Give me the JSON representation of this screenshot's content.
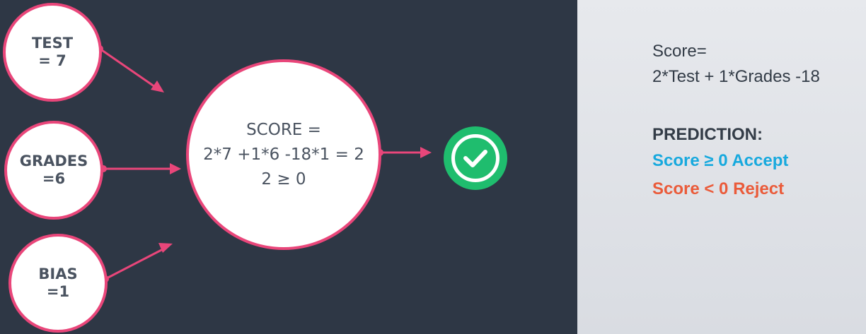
{
  "inputs": {
    "test": {
      "name": "TEST",
      "value": "= 7"
    },
    "grades": {
      "name": "GRADES",
      "value": "=6"
    },
    "bias": {
      "name": "BIAS",
      "value": "=1"
    }
  },
  "score_node": {
    "label": "SCORE =",
    "calculation": "2*7 +1*6 -18*1 = 2",
    "comparison": "2 ≥ 0"
  },
  "output": {
    "icon": "checkmark-icon",
    "color": "#1fbd6e"
  },
  "panel": {
    "formula_label": "Score=",
    "formula": "2*Test + 1*Grades -18",
    "prediction_title": "PREDICTION:",
    "accept_rule": "Score ≥ 0 Accept",
    "reject_rule": "Score < 0 Reject"
  },
  "colors": {
    "background_dark": "#2e3745",
    "background_light": "#e5e7eb",
    "edge": "#e9467a",
    "accept": "#17a9de",
    "reject": "#ea5b3a"
  }
}
